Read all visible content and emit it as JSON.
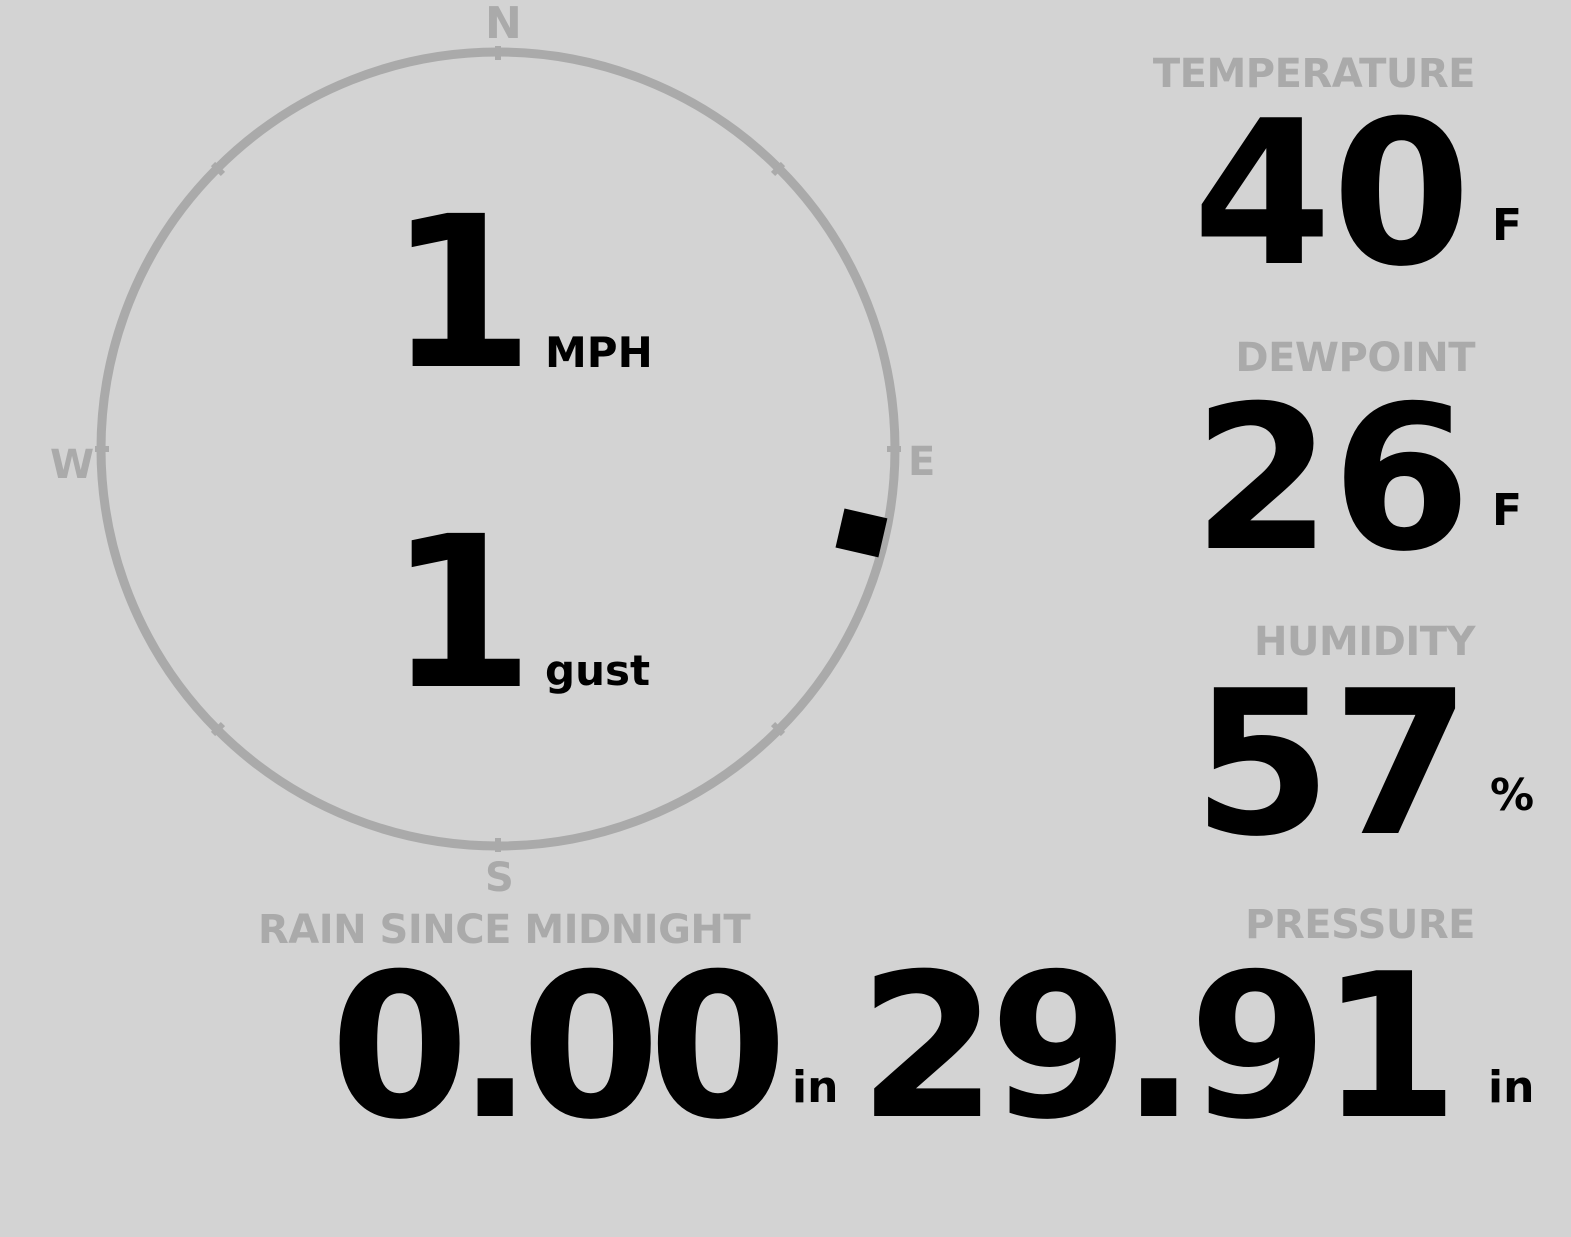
{
  "wind": {
    "speed": "1",
    "speed_unit": "MPH",
    "gust": "1",
    "gust_unit": "gust",
    "direction_deg": 103,
    "compass": {
      "n": "N",
      "e": "E",
      "s": "S",
      "w": "W"
    }
  },
  "temperature": {
    "label": "TEMPERATURE",
    "value": "40",
    "unit": "F"
  },
  "dewpoint": {
    "label": "DEWPOINT",
    "value": "26",
    "unit": "F"
  },
  "humidity": {
    "label": "HUMIDITY",
    "value": "57",
    "unit": "%"
  },
  "rain": {
    "label": "RAIN SINCE MIDNIGHT",
    "value": "0.00",
    "unit": "in"
  },
  "pressure": {
    "label": "PRESSURE",
    "value": "29.91",
    "unit": "in"
  },
  "colors": {
    "background": "#d3d3d3",
    "muted": "#aaaaaa",
    "text": "#000000"
  }
}
